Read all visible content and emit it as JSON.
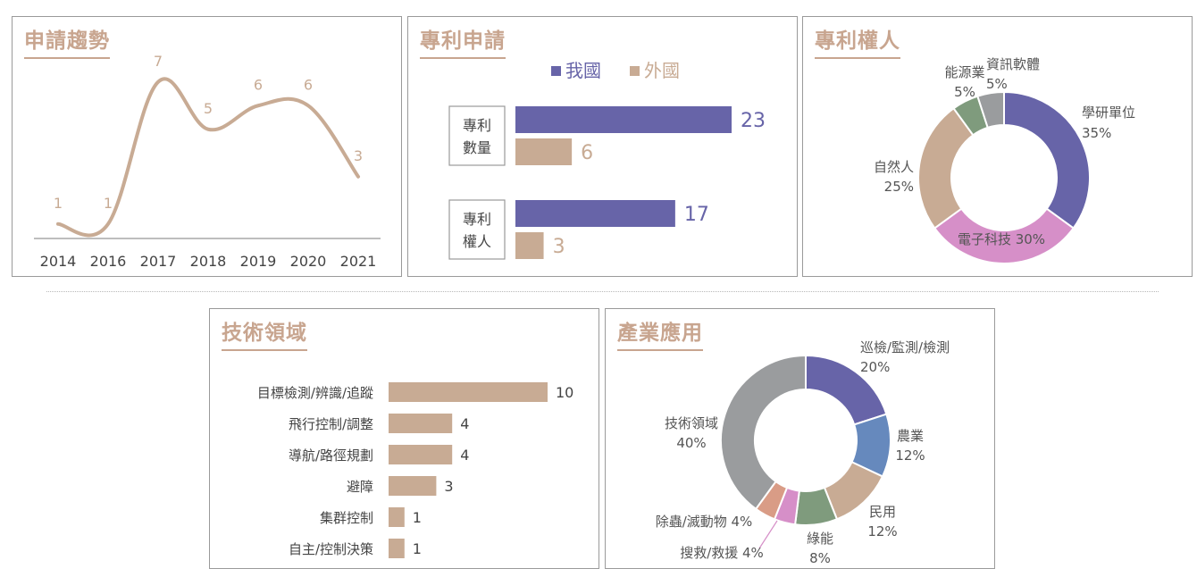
{
  "chart_data": [
    {
      "type": "line",
      "title": "申請趨勢",
      "x": [
        "2014",
        "2016",
        "2017",
        "2018",
        "2019",
        "2020",
        "2021"
      ],
      "values": [
        1,
        1,
        7,
        5,
        6,
        6,
        3
      ],
      "color": "#c8ab94",
      "grid": false
    },
    {
      "type": "bar",
      "orientation": "horizontal",
      "title": "專利申請",
      "categories": [
        "專利數量",
        "專利權人"
      ],
      "series": [
        {
          "name": "我國",
          "values": [
            23,
            17
          ],
          "color": "#6764a8"
        },
        {
          "name": "外國",
          "values": [
            6,
            3
          ],
          "color": "#c8ab94"
        }
      ],
      "legend": "top"
    },
    {
      "type": "pie",
      "donut": true,
      "title": "專利權人",
      "slices": [
        {
          "label": "學研單位",
          "value": 35,
          "display": "35%",
          "color": "#6764a8"
        },
        {
          "label": "電子科技",
          "value": 30,
          "display": "30%",
          "color": "#d68fc8"
        },
        {
          "label": "自然人",
          "value": 25,
          "display": "25%",
          "color": "#c8ab94"
        },
        {
          "label": "能源業",
          "value": 5,
          "display": "5%",
          "color": "#7f9b7d"
        },
        {
          "label": "資訊軟體",
          "value": 5,
          "display": "5%",
          "color": "#9a9c9e"
        }
      ]
    },
    {
      "type": "bar",
      "orientation": "horizontal",
      "title": "技術領域",
      "categories": [
        "目標檢測/辨識/追蹤",
        "飛行控制/調整",
        "導航/路徑規劃",
        "避障",
        "集群控制",
        "自主/控制決策"
      ],
      "values": [
        10,
        4,
        4,
        3,
        1,
        1
      ],
      "color": "#c8ab94"
    },
    {
      "type": "pie",
      "donut": true,
      "title": "產業應用",
      "slices": [
        {
          "label": "巡檢/監測/檢測",
          "value": 20,
          "display": "20%",
          "color": "#6764a8"
        },
        {
          "label": "農業",
          "value": 12,
          "display": "12%",
          "color": "#6689bd"
        },
        {
          "label": "民用",
          "value": 12,
          "display": "12%",
          "color": "#c8ab94"
        },
        {
          "label": "綠能",
          "value": 8,
          "display": "8%",
          "color": "#7f9b7d"
        },
        {
          "label": "搜救/救援",
          "value": 4,
          "display": "4%",
          "color": "#d68fc8"
        },
        {
          "label": "除蟲/滅動物",
          "value": 4,
          "display": "4%",
          "color": "#d99c86"
        },
        {
          "label": "技術領域",
          "value": 40,
          "display": "40%",
          "color": "#9a9c9e"
        }
      ]
    }
  ]
}
